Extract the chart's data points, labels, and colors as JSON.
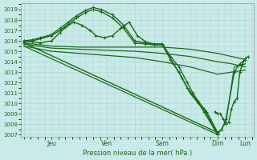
{
  "bg_color": "#c8eae8",
  "grid_color": "#b0d4cc",
  "line_color": "#1a6b1a",
  "marker_color": "#1a6b1a",
  "xlabel_text": "Pression niveau de la mer( hPa )",
  "xtick_labels": [
    "",
    "Jeu",
    "",
    "Ven",
    "",
    "Sam",
    "",
    "Dim",
    "Lun"
  ],
  "xtick_positions": [
    0,
    1,
    2,
    3,
    4,
    5,
    6,
    7,
    8
  ],
  "ylim": [
    1006.8,
    1019.6
  ],
  "yticks": [
    1007,
    1008,
    1009,
    1010,
    1011,
    1012,
    1013,
    1014,
    1015,
    1016,
    1017,
    1018,
    1019
  ],
  "xlim": [
    -0.1,
    8.3
  ],
  "series": [
    {
      "x": [
        0.0,
        0.3,
        0.6,
        1.0,
        1.3,
        1.6,
        1.9,
        2.2,
        2.5,
        2.8,
        3.2,
        3.6,
        4.0,
        4.4,
        4.7,
        5.0,
        5.3,
        5.6,
        5.9,
        6.1,
        6.3,
        6.5,
        6.7,
        7.0
      ],
      "y": [
        1016.0,
        1016.1,
        1016.3,
        1016.6,
        1017.2,
        1017.8,
        1018.4,
        1018.9,
        1019.2,
        1019.0,
        1018.5,
        1017.5,
        1016.0,
        1015.8,
        1015.7,
        1015.7,
        1014.5,
        1013.5,
        1012.0,
        1011.0,
        1010.2,
        1009.5,
        1008.5,
        1007.0
      ],
      "marker": true,
      "lw": 1.0
    },
    {
      "x": [
        0.0,
        0.3,
        0.6,
        1.0,
        1.3,
        1.6,
        1.9,
        2.2,
        2.5,
        2.8,
        3.2,
        3.6,
        4.0,
        4.4,
        4.7,
        5.0,
        5.3,
        5.6,
        5.9,
        6.2,
        6.5,
        7.0
      ],
      "y": [
        1015.9,
        1016.0,
        1016.2,
        1016.5,
        1017.0,
        1017.6,
        1018.2,
        1018.7,
        1019.0,
        1018.8,
        1018.2,
        1017.2,
        1015.8,
        1015.7,
        1015.6,
        1015.6,
        1014.2,
        1013.0,
        1011.5,
        1010.5,
        1009.2,
        1007.0
      ],
      "marker": true,
      "lw": 1.0
    },
    {
      "x": [
        0.0,
        0.3,
        0.6,
        1.0,
        1.3,
        1.5,
        1.8,
        2.1,
        2.4,
        2.6,
        2.9,
        3.2,
        3.5,
        3.8,
        4.1,
        4.4,
        4.7,
        5.0,
        5.4,
        5.7,
        6.0,
        6.3,
        6.6,
        7.0
      ],
      "y": [
        1016.0,
        1015.9,
        1015.8,
        1016.0,
        1016.8,
        1017.3,
        1017.8,
        1017.5,
        1017.0,
        1016.5,
        1016.3,
        1016.5,
        1017.2,
        1017.8,
        1016.5,
        1015.9,
        1015.7,
        1015.7,
        1013.8,
        1012.5,
        1011.0,
        1010.0,
        1009.2,
        1007.2
      ],
      "marker": true,
      "lw": 1.0
    },
    {
      "x": [
        0.0,
        1.0,
        2.0,
        3.0,
        4.0,
        5.0,
        6.0,
        7.0,
        7.5,
        8.0
      ],
      "y": [
        1015.8,
        1015.5,
        1015.4,
        1015.4,
        1015.4,
        1015.4,
        1015.2,
        1014.8,
        1014.5,
        1014.2
      ],
      "marker": false,
      "lw": 0.9
    },
    {
      "x": [
        0.0,
        1.0,
        2.0,
        3.0,
        4.0,
        5.0,
        6.0,
        7.0,
        7.5,
        8.0
      ],
      "y": [
        1015.7,
        1015.3,
        1015.2,
        1015.1,
        1015.0,
        1014.8,
        1014.5,
        1014.0,
        1013.8,
        1013.5
      ],
      "marker": false,
      "lw": 0.9
    },
    {
      "x": [
        0.0,
        1.0,
        2.0,
        3.0,
        4.0,
        5.0,
        6.0,
        7.0,
        7.5,
        8.0
      ],
      "y": [
        1015.5,
        1015.0,
        1014.8,
        1014.6,
        1014.4,
        1014.0,
        1013.5,
        1012.8,
        1013.0,
        1013.2
      ],
      "marker": false,
      "lw": 0.9
    },
    {
      "x": [
        0.0,
        7.0,
        7.3,
        7.6,
        8.0
      ],
      "y": [
        1015.5,
        1007.0,
        1008.2,
        1013.5,
        1013.8
      ],
      "marker": false,
      "lw": 0.9
    },
    {
      "x": [
        0.0,
        7.0,
        7.15,
        7.3,
        7.6,
        7.8,
        8.0
      ],
      "y": [
        1015.8,
        1007.2,
        1007.5,
        1008.5,
        1013.0,
        1013.8,
        1014.2
      ],
      "marker": true,
      "lw": 1.0
    },
    {
      "x": [
        6.9,
        7.0,
        7.1,
        7.2,
        7.3,
        7.4,
        7.5,
        7.6,
        7.7,
        7.8,
        7.9,
        8.0,
        8.1
      ],
      "y": [
        1009.2,
        1009.0,
        1009.0,
        1008.5,
        1008.0,
        1008.2,
        1009.5,
        1010.2,
        1010.5,
        1013.0,
        1013.8,
        1014.3,
        1014.5
      ],
      "marker": true,
      "lw": 1.0
    }
  ]
}
